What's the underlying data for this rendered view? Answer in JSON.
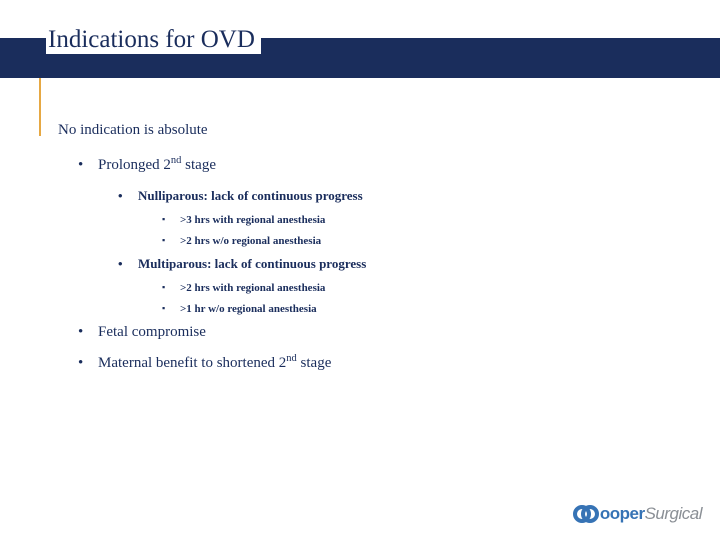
{
  "title": "Indications for OVD",
  "intro": "No indication is absolute",
  "l1": {
    "a": {
      "pre": "Prolonged 2",
      "sup": "nd",
      "post": " stage"
    },
    "b": "Fetal compromise",
    "c": {
      "pre": "Maternal benefit to shortened 2",
      "sup": "nd",
      "post": " stage"
    }
  },
  "l2": {
    "a": "Nulliparous: lack of continuous progress",
    "b": "Multiparous: lack of continuous progress"
  },
  "l3": {
    "a": ">3 hrs with regional anesthesia",
    "b": ">2 hrs w/o regional anesthesia",
    "c": ">2 hrs with regional anesthesia",
    "d": ">1 hr w/o regional anesthesia"
  },
  "logo": {
    "brand1": "ooper",
    "brand2": "Surgical"
  },
  "colors": {
    "primary": "#1a2d5c",
    "accent": "#e6a843",
    "logo_blue": "#3673b5",
    "logo_gray": "#8a8f95",
    "background": "#ffffff"
  }
}
